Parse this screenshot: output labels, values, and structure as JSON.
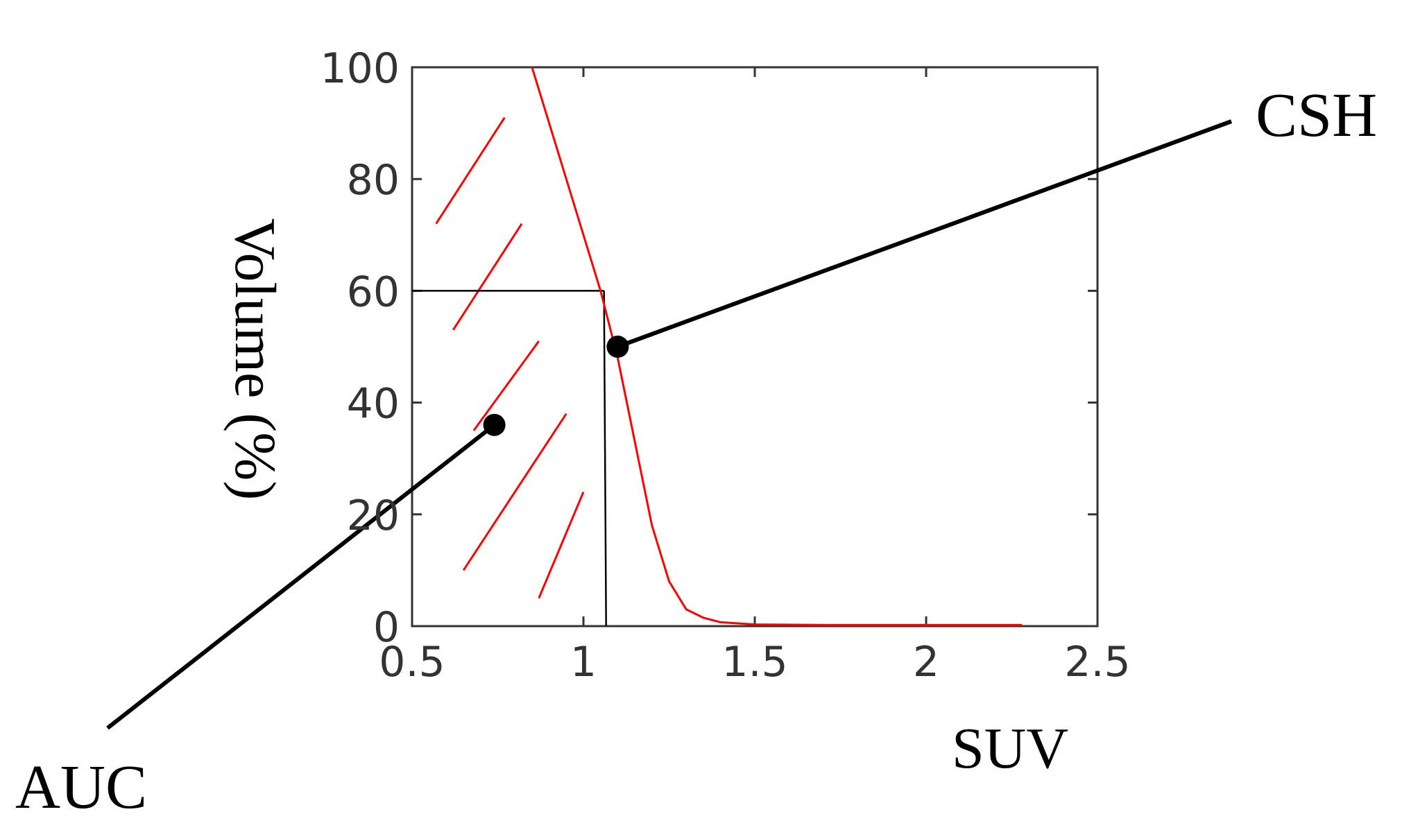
{
  "chart_data": {
    "type": "line",
    "xlabel": "SUV",
    "ylabel": "Volume (%)",
    "xlim": [
      0.5,
      2.5
    ],
    "ylim": [
      0,
      100
    ],
    "x_ticks": [
      "0.5",
      "1",
      "1.5",
      "2",
      "2.5"
    ],
    "y_ticks": [
      "0",
      "20",
      "40",
      "60",
      "80",
      "100"
    ],
    "grid": false,
    "series": [
      {
        "color": "#ff0000",
        "points": [
          [
            0.85,
            100
          ],
          [
            0.9,
            90
          ],
          [
            0.95,
            80
          ],
          [
            1.0,
            70
          ],
          [
            1.05,
            60
          ],
          [
            1.1,
            48
          ],
          [
            1.15,
            33
          ],
          [
            1.2,
            18
          ],
          [
            1.25,
            8
          ],
          [
            1.3,
            3
          ],
          [
            1.35,
            1.5
          ],
          [
            1.4,
            0.7
          ],
          [
            1.5,
            0.3
          ],
          [
            1.7,
            0.2
          ],
          [
            2.0,
            0.2
          ],
          [
            2.28,
            0.2
          ]
        ]
      }
    ],
    "auc_rectangle": {
      "x_start": 0.5,
      "x_end": 1.06,
      "y": 60,
      "x_bottom": 1.05,
      "color": "#000000"
    },
    "hatch_color": "#ff0000",
    "annotations": [
      {
        "text": "CSH",
        "marker": [
          1.1,
          50
        ]
      },
      {
        "text": "AUC",
        "marker": [
          0.74,
          36
        ]
      }
    ]
  }
}
